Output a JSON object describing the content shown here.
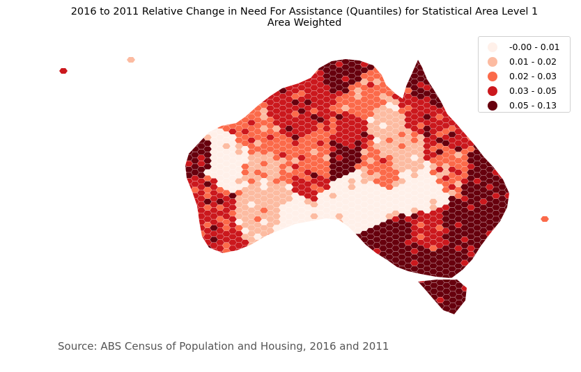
{
  "title": {
    "line1": "2016 to 2011 Relative Change in Need For Assistance (Quantiles) for Statistical Area Level 1",
    "line2": "Area Weighted"
  },
  "legend": {
    "items": [
      {
        "label": "-0.00 - 0.01",
        "color": "#fff0e9"
      },
      {
        "label": "0.01 - 0.02",
        "color": "#fcbba1"
      },
      {
        "label": "0.02 - 0.03",
        "color": "#fb6a4a"
      },
      {
        "label": "0.03 - 0.05",
        "color": "#cb181d"
      },
      {
        "label": "0.05 - 0.13",
        "color": "#67000d"
      }
    ]
  },
  "source": "Source: ABS Census of Population and Housing, 2016 and 2011"
}
